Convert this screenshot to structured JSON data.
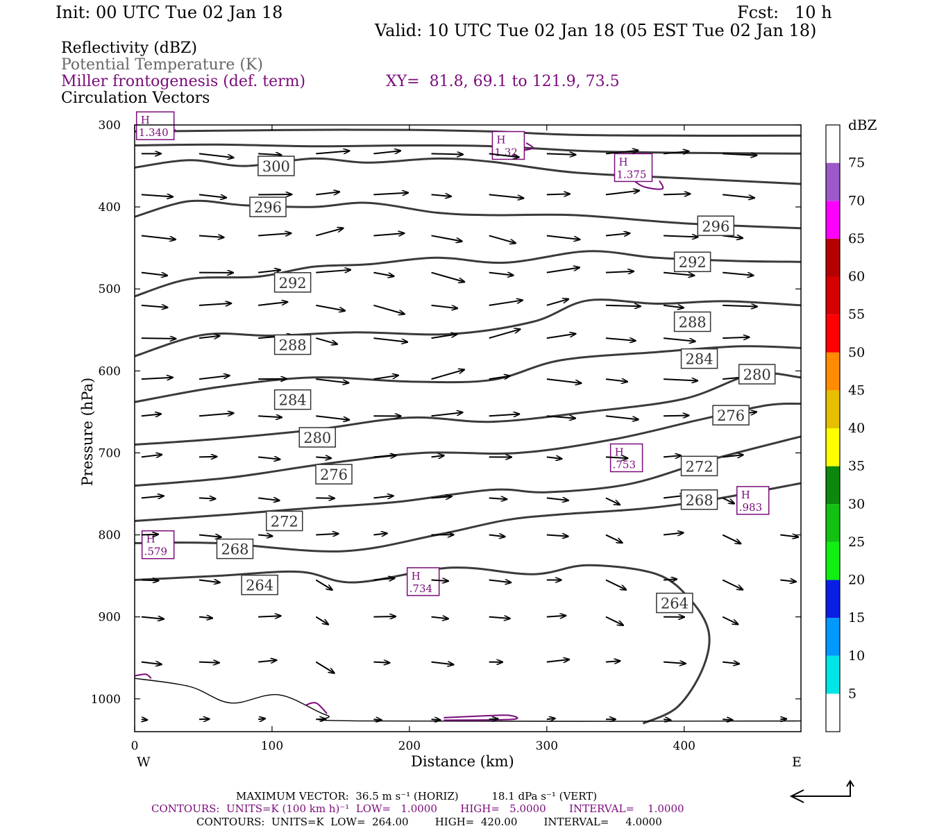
{
  "header": {
    "init": "Init: 00 UTC Tue 02 Jan 18",
    "fcst": "Fcst:   10 h",
    "valid": "Valid: 10 UTC Tue 02 Jan 18 (05 EST Tue 02 Jan 18)"
  },
  "legend": {
    "reflectivity": "Reflectivity (dBZ)",
    "theta": "Potential Temperature (K)",
    "miller": "Miller frontogenesis (def. term)",
    "xy": "XY=  81.8, 69.1 to 121.9, 73.5",
    "circulation": "Circulation Vectors"
  },
  "footer": {
    "max_vector": "MAXIMUM VECTOR:  36.5 m s⁻¹ (HORIZ)          18.1 dPa s⁻¹ (VERT)",
    "contours_fronto": "CONTOURS:  UNITS=K (100 km h)⁻¹  LOW=   1.0000       HIGH=   5.0000       INTERVAL=    1.0000",
    "contours_theta": "CONTOURS:  UNITS=K  LOW=  264.00        HIGH=  420.00        INTERVAL=     4.0000"
  },
  "colors": {
    "theta_contour": "#3a3a3a",
    "fronto_contour": "#7a0a7a",
    "vector": "#000000"
  },
  "chart_data": {
    "type": "line",
    "xlabel": "Distance (km)",
    "ylabel": "Pressure (hPa)",
    "x_ticks": [
      0,
      100,
      200,
      300,
      400
    ],
    "y_ticks": [
      300,
      400,
      500,
      600,
      700,
      800,
      900,
      1000
    ],
    "xlim": [
      0,
      485
    ],
    "ylim": [
      1040,
      300
    ],
    "x_end_labels": {
      "left": "W",
      "right": "E"
    },
    "grid": false,
    "theta_contours": [
      {
        "label": "300",
        "points": [
          [
            0,
            308
          ],
          [
            60,
            307
          ],
          [
            130,
            306
          ],
          [
            200,
            306
          ],
          [
            260,
            308
          ],
          [
            320,
            312
          ],
          [
            400,
            313
          ],
          [
            485,
            313
          ]
        ]
      },
      {
        "label": "300",
        "points": [
          [
            0,
            325
          ],
          [
            60,
            324
          ],
          [
            130,
            326
          ],
          [
            200,
            325
          ],
          [
            260,
            326
          ],
          [
            330,
            332
          ],
          [
            400,
            334
          ],
          [
            485,
            335
          ]
        ]
      },
      {
        "label": "300",
        "points": [
          [
            0,
            352
          ],
          [
            40,
            343
          ],
          [
            80,
            350
          ],
          [
            130,
            341
          ],
          [
            170,
            346
          ],
          [
            220,
            341
          ],
          [
            260,
            345
          ],
          [
            320,
            358
          ],
          [
            400,
            365
          ],
          [
            485,
            372
          ]
        ]
      },
      {
        "label": "296",
        "points": [
          [
            0,
            412
          ],
          [
            40,
            393
          ],
          [
            80,
            398
          ],
          [
            130,
            400
          ],
          [
            170,
            395
          ],
          [
            220,
            407
          ],
          [
            260,
            410
          ],
          [
            320,
            410
          ],
          [
            400,
            420
          ],
          [
            485,
            426
          ]
        ]
      },
      {
        "label": "292",
        "points": [
          [
            0,
            509
          ],
          [
            40,
            488
          ],
          [
            90,
            485
          ],
          [
            130,
            473
          ],
          [
            170,
            470
          ],
          [
            220,
            462
          ],
          [
            270,
            468
          ],
          [
            330,
            454
          ],
          [
            380,
            462
          ],
          [
            440,
            466
          ],
          [
            485,
            467
          ]
        ]
      },
      {
        "label": "288",
        "points": [
          [
            0,
            582
          ],
          [
            50,
            556
          ],
          [
            100,
            557
          ],
          [
            160,
            553
          ],
          [
            230,
            555
          ],
          [
            290,
            540
          ],
          [
            330,
            514
          ],
          [
            380,
            518
          ],
          [
            430,
            515
          ],
          [
            485,
            520
          ]
        ]
      },
      {
        "label": "284",
        "points": [
          [
            0,
            638
          ],
          [
            60,
            620
          ],
          [
            130,
            608
          ],
          [
            200,
            613
          ],
          [
            260,
            611
          ],
          [
            310,
            587
          ],
          [
            380,
            577
          ],
          [
            440,
            570
          ],
          [
            485,
            572
          ]
        ]
      },
      {
        "label": "280",
        "points": [
          [
            0,
            690
          ],
          [
            60,
            683
          ],
          [
            130,
            672
          ],
          [
            200,
            657
          ],
          [
            260,
            662
          ],
          [
            330,
            650
          ],
          [
            400,
            634
          ],
          [
            450,
            604
          ],
          [
            485,
            608
          ]
        ]
      },
      {
        "label": "276",
        "points": [
          [
            0,
            740
          ],
          [
            70,
            730
          ],
          [
            140,
            713
          ],
          [
            210,
            700
          ],
          [
            280,
            700
          ],
          [
            350,
            683
          ],
          [
            410,
            660
          ],
          [
            460,
            642
          ],
          [
            485,
            640
          ]
        ]
      },
      {
        "label": "272",
        "points": [
          [
            0,
            783
          ],
          [
            70,
            775
          ],
          [
            130,
            767
          ],
          [
            190,
            760
          ],
          [
            260,
            745
          ],
          [
            300,
            748
          ],
          [
            360,
            738
          ],
          [
            420,
            708
          ],
          [
            485,
            680
          ]
        ]
      },
      {
        "label": "268",
        "points": [
          [
            0,
            810
          ],
          [
            60,
            810
          ],
          [
            150,
            820
          ],
          [
            220,
            800
          ],
          [
            270,
            782
          ],
          [
            310,
            775
          ],
          [
            370,
            768
          ],
          [
            420,
            757
          ],
          [
            485,
            737
          ]
        ]
      },
      {
        "label": "264",
        "points": [
          [
            0,
            855
          ],
          [
            60,
            850
          ],
          [
            120,
            845
          ],
          [
            160,
            858
          ],
          [
            230,
            840
          ],
          [
            290,
            848
          ],
          [
            330,
            837
          ],
          [
            380,
            848
          ],
          [
            405,
            880
          ],
          [
            418,
            920
          ],
          [
            413,
            965
          ],
          [
            395,
            1010
          ],
          [
            370,
            1030
          ]
        ]
      }
    ],
    "theta_labels": [
      {
        "text": "300",
        "x": 103,
        "p": 350
      },
      {
        "text": "296",
        "x": 97,
        "p": 400
      },
      {
        "text": "296",
        "x": 423,
        "p": 423
      },
      {
        "text": "292",
        "x": 115,
        "p": 492
      },
      {
        "text": "292",
        "x": 406,
        "p": 467
      },
      {
        "text": "288",
        "x": 115,
        "p": 568
      },
      {
        "text": "288",
        "x": 406,
        "p": 540
      },
      {
        "text": "284",
        "x": 115,
        "p": 635
      },
      {
        "text": "284",
        "x": 411,
        "p": 585
      },
      {
        "text": "280",
        "x": 133,
        "p": 681
      },
      {
        "text": "280",
        "x": 453,
        "p": 604
      },
      {
        "text": "276",
        "x": 145,
        "p": 726
      },
      {
        "text": "276",
        "x": 434,
        "p": 654
      },
      {
        "text": "272",
        "x": 109,
        "p": 783
      },
      {
        "text": "272",
        "x": 411,
        "p": 716
      },
      {
        "text": "268",
        "x": 73,
        "p": 817
      },
      {
        "text": "268",
        "x": 411,
        "p": 757
      },
      {
        "text": "264",
        "x": 91,
        "p": 861
      },
      {
        "text": "264",
        "x": 393,
        "p": 883
      }
    ],
    "fronto_maxima": [
      {
        "label": "H",
        "value": "1.340",
        "x": 15,
        "p": 301
      },
      {
        "label": "H",
        "value": "1.32",
        "x": 272,
        "p": 325
      },
      {
        "label": "H",
        "value": "1.375",
        "x": 363,
        "p": 352
      },
      {
        "label": "H",
        "value": ".753",
        "x": 358,
        "p": 706
      },
      {
        "label": "H",
        "value": ".983",
        "x": 450,
        "p": 758
      },
      {
        "label": "H",
        "value": ".579",
        "x": 17,
        "p": 812
      },
      {
        "label": "H",
        "value": ".734",
        "x": 210,
        "p": 857
      }
    ],
    "reflectivity_colorbar": {
      "unit": "dBZ",
      "levels": [
        5,
        10,
        15,
        20,
        25,
        30,
        35,
        40,
        45,
        50,
        55,
        60,
        65,
        70,
        75
      ],
      "colors": [
        "#ffffff",
        "#00e5e5",
        "#0099ff",
        "#0a1ee6",
        "#11f011",
        "#11c211",
        "#0c880c",
        "#ffff00",
        "#e6bf00",
        "#ff8c00",
        "#ff0000",
        "#d70000",
        "#b50000",
        "#ff00ff",
        "#9b59c9",
        "#ffffff"
      ]
    },
    "vectors": {
      "columns_x": [
        5,
        47,
        90,
        132,
        174,
        216,
        258,
        300,
        343,
        385,
        428,
        470
      ],
      "levels_p": [
        335,
        385,
        435,
        480,
        520,
        560,
        610,
        655,
        705,
        755,
        800,
        855,
        900,
        955,
        1025
      ]
    }
  }
}
